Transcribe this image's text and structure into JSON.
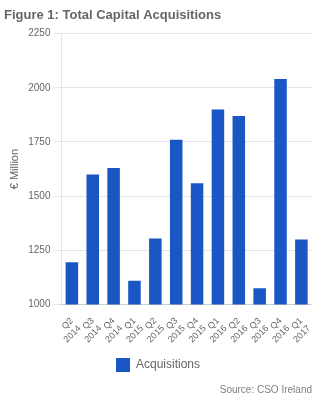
{
  "chart_data": {
    "type": "bar",
    "title": "Figure 1: Total Capital Acquisitions",
    "y_label": "€ Million",
    "categories": [
      "Q2\n2014",
      "Q3\n2014",
      "Q4\n2014",
      "Q1\n2015",
      "Q2\n2015",
      "Q3\n2015",
      "Q4\n2015",
      "Q1\n2016",
      "Q2\n2016",
      "Q3\n2016",
      "Q4\n2016",
      "Q1\n2017"
    ],
    "series": [
      {
        "name": "Acquisitions",
        "color": "#1a56c4",
        "values": [
          1195,
          1600,
          1630,
          1110,
          1305,
          1760,
          1560,
          1900,
          1870,
          1075,
          2040,
          1300
        ]
      }
    ],
    "ylim": [
      1000,
      2250
    ],
    "yticks": [
      1000,
      1250,
      1500,
      1750,
      2000,
      2250
    ],
    "grid": true,
    "legend": "bottom",
    "annotations": [
      "Source: CSO Ireland"
    ]
  }
}
